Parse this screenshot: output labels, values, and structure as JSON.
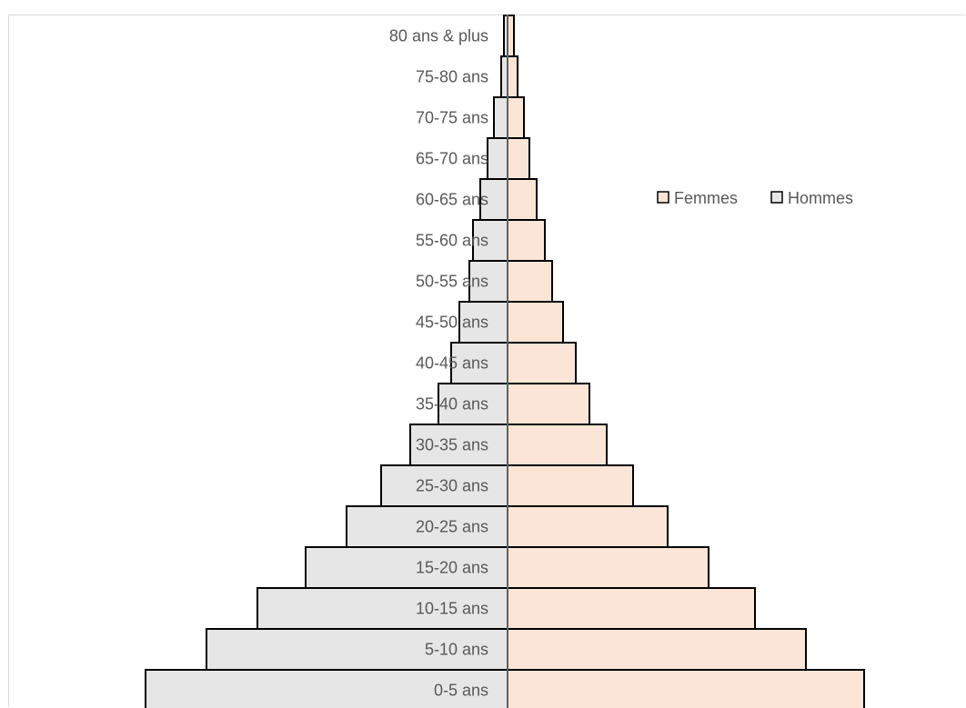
{
  "chart_data": {
    "type": "bar",
    "orientation": "horizontal-pyramid",
    "categories": [
      "0-5 ans",
      "5-10 ans",
      "10-15 ans",
      "15-20 ans",
      "20-25 ans",
      "25-30 ans",
      "30-35 ans",
      "35-40 ans",
      "40-45 ans",
      "45-50 ans",
      "50-55 ans",
      "55-60 ans",
      "60-65 ans",
      "65-70 ans",
      "70-75 ans",
      "75-80 ans",
      "80 ans & plus"
    ],
    "series": [
      {
        "name": "Femmes",
        "color": "#fbe5d6",
        "values": [
          392,
          328,
          272,
          221,
          176,
          138,
          109,
          90,
          75,
          61,
          49,
          41,
          32,
          24,
          18,
          11,
          7
        ]
      },
      {
        "name": "Hommes",
        "color": "#e7e6e6",
        "values": [
          398,
          331,
          275,
          222,
          177,
          139,
          107,
          76,
          62,
          53,
          42,
          38,
          30,
          22,
          15,
          7,
          4
        ]
      }
    ],
    "xlim": [
      -440,
      510
    ],
    "legend_position": "right",
    "bar_outline_color": "#000000",
    "grid": false
  }
}
